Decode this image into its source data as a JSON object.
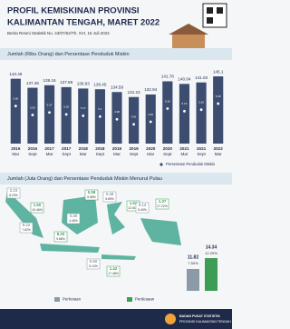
{
  "header": {
    "title": [
      "PROFIL KEMISKINAN PROVINSI",
      "KALIMANTAN TENGAH, MARET 2022"
    ],
    "subtitle": "Berita Resmi Statistik No. 43/07/62/Th. XVI, 15 Juli 2022"
  },
  "chart_data": {
    "type": "bar",
    "title": "Jumlah (Ribu Orang) dan Persentase Penduduk Miskin",
    "categories": [
      [
        "2016",
        "Mar"
      ],
      [
        "2016",
        "Sept"
      ],
      [
        "2017",
        "Mar"
      ],
      [
        "2017",
        "Sept"
      ],
      [
        "2018",
        "Mar"
      ],
      [
        "2018",
        "Sept"
      ],
      [
        "2019",
        "Mar"
      ],
      [
        "2019",
        "Sept"
      ],
      [
        "2020",
        "Mar"
      ],
      [
        "2020",
        "Sept"
      ],
      [
        "2021",
        "Mar"
      ],
      [
        "2021",
        "Sept"
      ],
      [
        "2022",
        "Mar"
      ]
    ],
    "values": [
      143.49,
      137.46,
      139.16,
      137.88,
      136.93,
      136.45,
      134.59,
      131.24,
      132.94,
      141.78,
      140.04,
      141.03,
      145.1
    ],
    "percentages": {
      "name": "Persentase Penduduk Miskin",
      "values": [
        5.66,
        5.36,
        5.37,
        5.26,
        5.17,
        5.1,
        4.98,
        4.81,
        4.82,
        5.26,
        5.16,
        5.16,
        5.28
      ]
    },
    "color": "#3d4d70",
    "ylim": [
      100,
      150
    ]
  },
  "islands": {
    "title": "Jumlah (Juta Orang) dan Persentase Penduduk Miskin Menurut Pulau",
    "regions": [
      {
        "urban": [
          "2.23",
          "8.29%"
        ],
        "rural": [
          "1.50",
          "10.46%"
        ]
      },
      {
        "urban": [
          "6.22",
          "7.62%"
        ],
        "rural": [
          "8.20",
          "9.86%"
        ]
      },
      {
        "urban": [
          "0.40",
          "4.45%"
        ],
        "rural": [
          "0.58",
          "6.58%"
        ]
      },
      {
        "urban": [
          "0.48",
          "5.89%"
        ],
        "rural": [
          "1.52",
          "12.61%"
        ]
      },
      {
        "urban": [
          "0.60",
          "9.13%"
        ],
        "rural": [
          "1.42",
          "17.48%"
        ]
      },
      {
        "urban": [
          "0.14",
          "5.40%"
        ],
        "rural": [
          "1.37",
          "27.22%"
        ]
      }
    ],
    "total": {
      "urban": [
        "11.82",
        "7.50%"
      ],
      "rural": [
        "14.34",
        "12.29%"
      ]
    },
    "legend": [
      "Perkotaan",
      "Perdesaan"
    ]
  },
  "footer": [
    "BADAN PUSAT STATISTIK",
    "PROVINSI KALIMANTAN TENGAH"
  ]
}
